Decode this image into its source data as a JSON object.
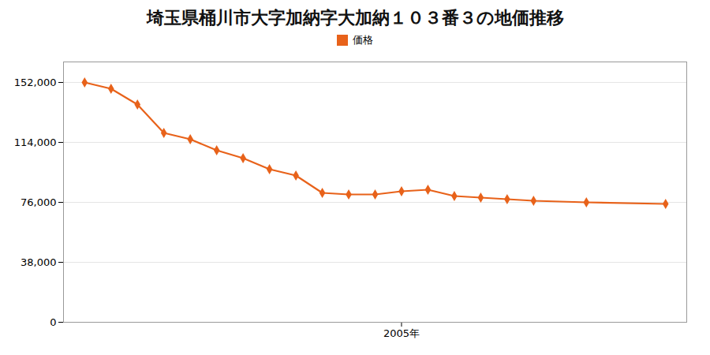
{
  "chart_data": {
    "type": "line",
    "title": "埼玉県桶川市大字加納字大加納１０３番３の地価推移",
    "x": [
      1993,
      1994,
      1995,
      1996,
      1997,
      1998,
      1999,
      2000,
      2001,
      2002,
      2003,
      2004,
      2005,
      2006,
      2007,
      2008,
      2009,
      2010,
      2012,
      2015
    ],
    "series": [
      {
        "name": "価格",
        "color": "#E8621A",
        "marker": "diamond",
        "values": [
          152000,
          148000,
          138000,
          120000,
          116000,
          109000,
          104000,
          97000,
          93000,
          82000,
          81000,
          81000,
          83000,
          84000,
          80000,
          79000,
          78000,
          77000,
          76000,
          75000
        ]
      }
    ],
    "xlim": [
      1992.2,
      2015.8
    ],
    "xticks": [
      {
        "value": 2005,
        "label": "2005年"
      }
    ],
    "ylim": [
      0,
      165000
    ],
    "yticks": [
      0,
      {
        "value": 38000,
        "label": "38,000"
      },
      {
        "value": 76000,
        "label": "76,000"
      },
      {
        "value": 114000,
        "label": "114,000"
      },
      {
        "value": 152000,
        "label": "152,000"
      }
    ],
    "grid": "y",
    "legend": "top"
  }
}
